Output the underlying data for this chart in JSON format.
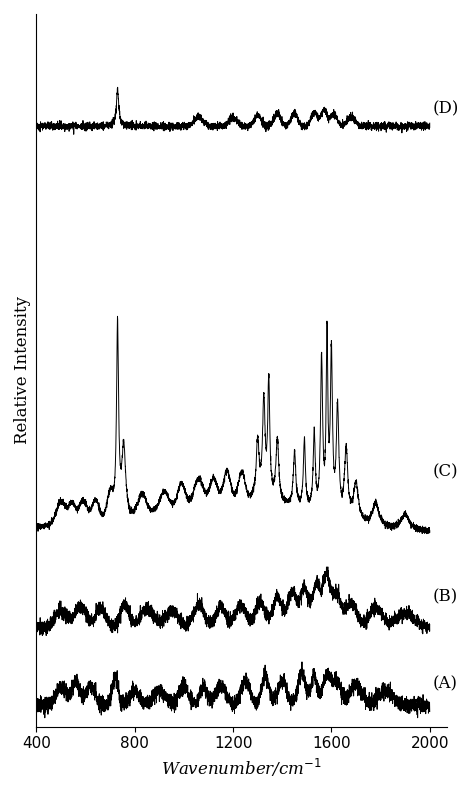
{
  "title": "",
  "xlabel": "Wavenumber/cm⁻¹",
  "ylabel": "Relative Intensity",
  "xlim": [
    400,
    2000
  ],
  "background_color": "#ffffff",
  "line_color": "#000000",
  "label_fontsize": 12,
  "tick_fontsize": 11,
  "spectrum_labels": [
    "(A)",
    "(B)",
    "(C)",
    "(D)"
  ]
}
